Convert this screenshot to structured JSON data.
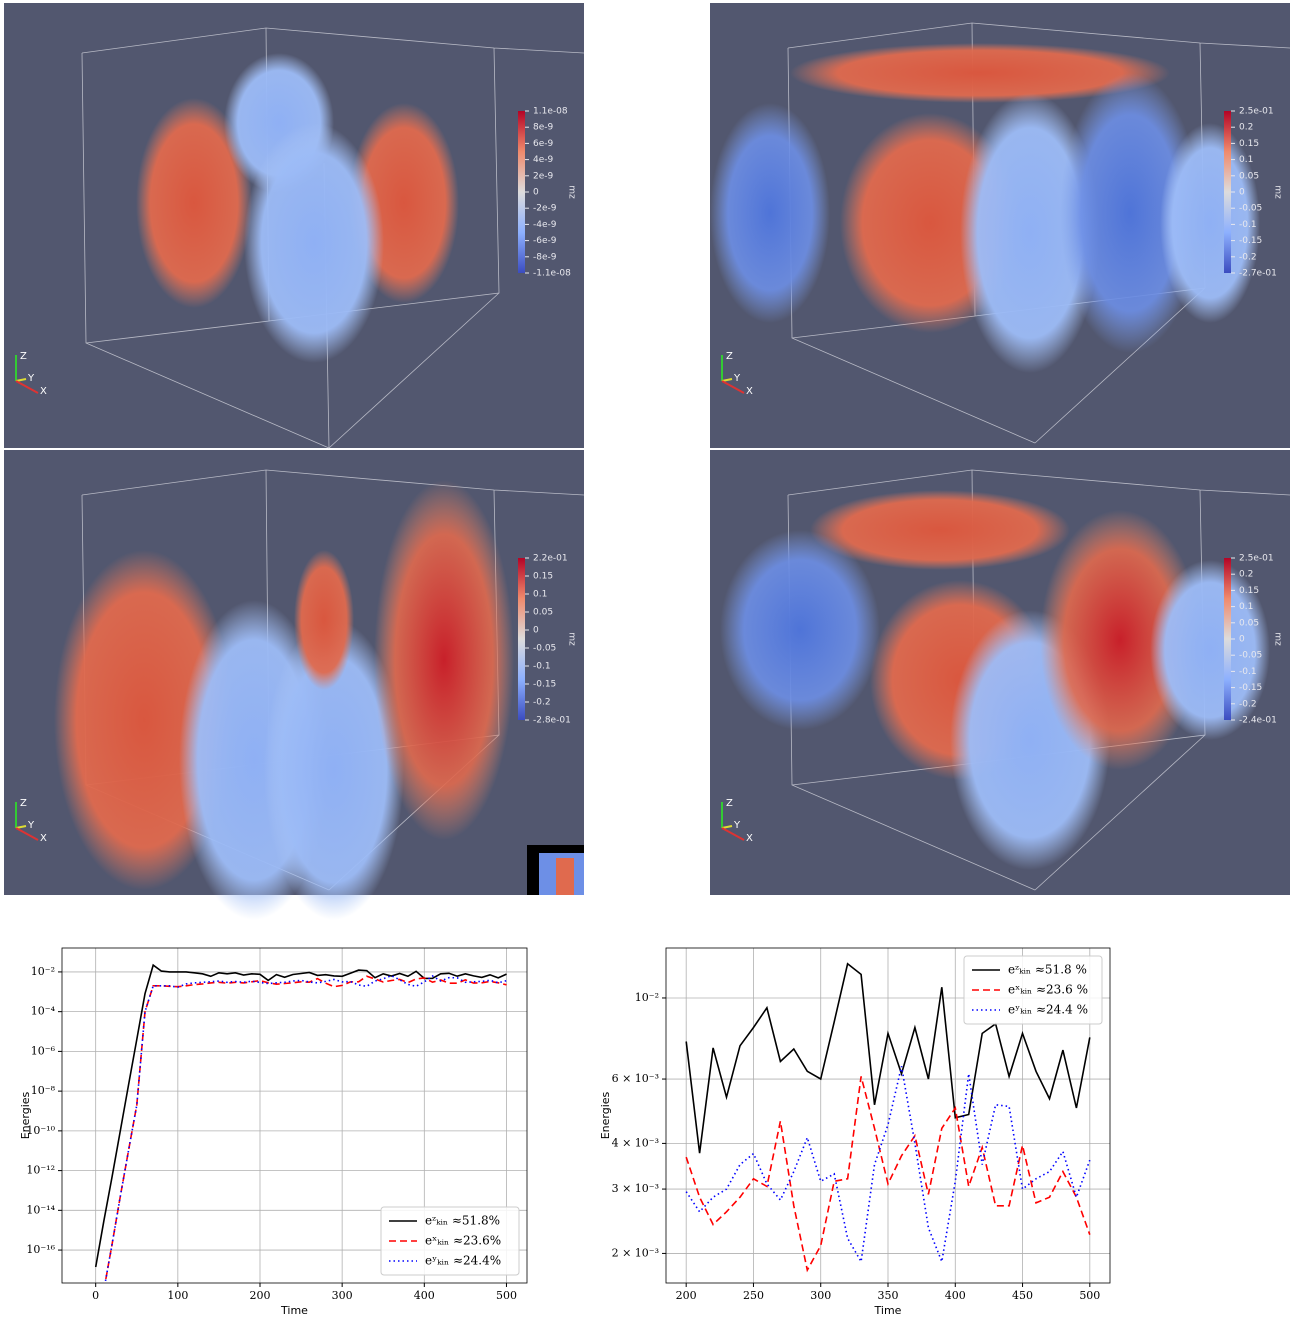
{
  "panels": [
    {
      "colorbar_label": "mz",
      "colorbar_ticks": [
        "1.1e-08",
        "8e-9",
        "6e-9",
        "4e-9",
        "2e-9",
        "0",
        "-2e-9",
        "-4e-9",
        "-6e-9",
        "-8e-9",
        "-1.1e-08"
      ]
    },
    {
      "colorbar_label": "mz",
      "colorbar_ticks": [
        "2.5e-01",
        "0.2",
        "0.15",
        "0.1",
        "0.05",
        "0",
        "-0.05",
        "-0.1",
        "-0.15",
        "-0.2",
        "-2.7e-01"
      ]
    },
    {
      "colorbar_label": "mz",
      "colorbar_ticks": [
        "2.2e-01",
        "0.15",
        "0.1",
        "0.05",
        "0",
        "-0.05",
        "-0.1",
        "-0.15",
        "-0.2",
        "-2.8e-01"
      ]
    },
    {
      "colorbar_label": "mz",
      "colorbar_ticks": [
        "2.5e-01",
        "0.2",
        "0.15",
        "0.1",
        "0.05",
        "0",
        "-0.05",
        "-0.1",
        "-0.15",
        "-0.2",
        "-2.4e-01"
      ]
    }
  ],
  "triad": [
    "Z",
    "Y",
    "X"
  ],
  "chart_data": [
    {
      "type": "line",
      "xlabel": "Time",
      "ylabel": "Energies",
      "log_y": true,
      "grid": true,
      "legend": "lower right",
      "xlim": [
        -41,
        525
      ],
      "xticks": [
        0,
        100,
        200,
        300,
        400,
        500
      ],
      "ylim": [
        2.2e-18,
        0.16
      ],
      "yticks": [
        {
          "value": 1e-16,
          "label": "10⁻¹⁶"
        },
        {
          "value": 1e-14,
          "label": "10⁻¹⁴"
        },
        {
          "value": 1e-12,
          "label": "10⁻¹²"
        },
        {
          "value": 1e-10,
          "label": "10⁻¹⁰"
        },
        {
          "value": 1e-08,
          "label": "10⁻⁸"
        },
        {
          "value": 1e-06,
          "label": "10⁻⁶"
        },
        {
          "value": 0.0001,
          "label": "10⁻⁴"
        },
        {
          "value": 0.01,
          "label": "10⁻²"
        }
      ],
      "x": [
        0,
        10,
        20,
        30,
        40,
        50,
        60,
        70,
        80,
        90,
        100,
        110,
        120,
        130,
        140,
        150,
        160,
        170,
        180,
        190,
        200,
        210,
        220,
        230,
        240,
        250,
        260,
        270,
        280,
        290,
        300,
        310,
        320,
        330,
        340,
        350,
        360,
        370,
        380,
        390,
        400,
        410,
        420,
        430,
        440,
        450,
        460,
        470,
        480,
        490,
        500
      ],
      "series": [
        {
          "name": "eᶻₖᵢₙ ≈51.8%",
          "color": "#000000",
          "linestyle": "solid",
          "values": [
            1.4e-17,
            3e-15,
            5e-13,
            1e-10,
            2e-08,
            4e-06,
            0.0008,
            0.022,
            0.011,
            0.01,
            0.01,
            0.01,
            0.009,
            0.008,
            0.006,
            0.009,
            0.008,
            0.009,
            0.007,
            0.008,
            0.0076,
            0.00376,
            0.0073,
            0.00535,
            0.0074,
            0.0083,
            0.0094,
            0.0067,
            0.00725,
            0.0063,
            0.006,
            0.0086,
            0.0124,
            0.0116,
            0.0051,
            0.008,
            0.0062,
            0.0083,
            0.006,
            0.0107,
            0.0047,
            0.0048,
            0.008,
            0.0085,
            0.0061,
            0.008,
            0.0063,
            0.0053,
            0.0072,
            0.005,
            0.0078
          ]
        },
        {
          "name": "eˣₖᵢₙ ≈23.6%",
          "color": "#ff0000",
          "linestyle": "dashed",
          "values": [
            null,
            1e-18,
            2e-16,
            5e-14,
            1e-11,
            2e-09,
            0.0001,
            0.002,
            0.002,
            0.0019,
            0.0018,
            0.002,
            0.0023,
            0.0025,
            0.0028,
            0.003,
            0.0027,
            0.003,
            0.0028,
            0.0032,
            0.00367,
            0.00285,
            0.0024,
            0.0026,
            0.00285,
            0.0032,
            0.00305,
            0.0046,
            0.0027,
            0.0018,
            0.0021,
            0.00315,
            0.0032,
            0.0061,
            0.0044,
            0.0031,
            0.0037,
            0.0042,
            0.0029,
            0.0044,
            0.005,
            0.00305,
            0.0039,
            0.0027,
            0.0027,
            0.00395,
            0.00275,
            0.00285,
            0.00335,
            0.00285,
            0.00225
          ]
        },
        {
          "name": "eʸₖᵢₙ ≈24.4%",
          "color": "#0000ff",
          "linestyle": "dotted",
          "values": [
            null,
            1e-18,
            2e-16,
            5e-14,
            1e-11,
            2e-09,
            0.0001,
            0.002,
            0.002,
            0.002,
            0.0017,
            0.0025,
            0.0028,
            0.003,
            0.0032,
            0.0035,
            0.003,
            0.0033,
            0.003,
            0.0034,
            0.00295,
            0.0026,
            0.00285,
            0.003,
            0.0035,
            0.00375,
            0.0031,
            0.0028,
            0.00335,
            0.00415,
            0.00315,
            0.0033,
            0.0022,
            0.0019,
            0.0035,
            0.0045,
            0.0065,
            0.004,
            0.00235,
            0.0019,
            0.00315,
            0.0062,
            0.0035,
            0.0051,
            0.00505,
            0.003,
            0.0032,
            0.00335,
            0.0038,
            0.00285,
            0.0036
          ]
        }
      ]
    },
    {
      "type": "line",
      "xlabel": "Time",
      "ylabel": "Energies",
      "log_y": true,
      "grid": true,
      "legend": "upper right",
      "xlim": [
        185,
        515
      ],
      "xticks": [
        200,
        250,
        300,
        350,
        400,
        450,
        500
      ],
      "ylim": [
        0.00166,
        0.0137
      ],
      "yticks": [
        {
          "value": 0.002,
          "label": "2 × 10⁻³"
        },
        {
          "value": 0.003,
          "label": "3 × 10⁻³"
        },
        {
          "value": 0.004,
          "label": "4 × 10⁻³"
        },
        {
          "value": 0.006,
          "label": "6 × 10⁻³"
        },
        {
          "value": 0.01,
          "label": "10⁻²"
        }
      ],
      "x": [
        200,
        210,
        220,
        230,
        240,
        250,
        260,
        270,
        280,
        290,
        300,
        310,
        320,
        330,
        340,
        350,
        360,
        370,
        380,
        390,
        400,
        410,
        420,
        430,
        440,
        450,
        460,
        470,
        480,
        490,
        500
      ],
      "series": [
        {
          "name": "eᶻₖᵢₙ ≈51.8 %",
          "color": "#000000",
          "linestyle": "solid",
          "values": [
            0.0076,
            0.00376,
            0.0073,
            0.00535,
            0.0074,
            0.0083,
            0.0094,
            0.0067,
            0.00725,
            0.0063,
            0.006,
            0.0086,
            0.0124,
            0.0116,
            0.0051,
            0.008,
            0.0062,
            0.0083,
            0.006,
            0.0107,
            0.0047,
            0.0048,
            0.008,
            0.0085,
            0.0061,
            0.008,
            0.0063,
            0.0053,
            0.0072,
            0.005,
            0.0078
          ]
        },
        {
          "name": "eˣₖᵢₙ ≈23.6 %",
          "color": "#ff0000",
          "linestyle": "dashed",
          "values": [
            0.00367,
            0.00285,
            0.0024,
            0.0026,
            0.00285,
            0.0032,
            0.00305,
            0.0046,
            0.0027,
            0.0018,
            0.0021,
            0.00315,
            0.0032,
            0.0061,
            0.0044,
            0.0031,
            0.0037,
            0.0042,
            0.0029,
            0.0044,
            0.005,
            0.00305,
            0.0039,
            0.0027,
            0.0027,
            0.00395,
            0.00275,
            0.00285,
            0.00335,
            0.00285,
            0.00225
          ]
        },
        {
          "name": "eʸₖᵢₙ ≈24.4 %",
          "color": "#0000ff",
          "linestyle": "dotted",
          "values": [
            0.00295,
            0.0026,
            0.00285,
            0.003,
            0.0035,
            0.00375,
            0.0031,
            0.0028,
            0.00335,
            0.00415,
            0.00315,
            0.0033,
            0.0022,
            0.0019,
            0.0035,
            0.0045,
            0.0065,
            0.004,
            0.00235,
            0.0019,
            0.00315,
            0.0062,
            0.0035,
            0.0051,
            0.00505,
            0.003,
            0.0032,
            0.00335,
            0.0038,
            0.00285,
            0.0036
          ]
        }
      ]
    }
  ]
}
